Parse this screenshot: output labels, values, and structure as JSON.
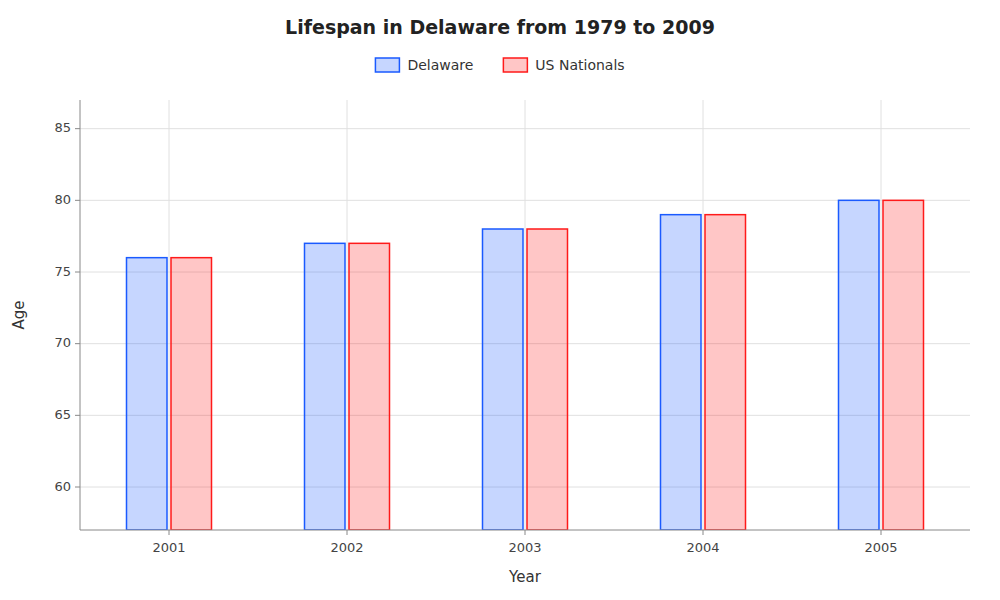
{
  "chart_data": {
    "type": "bar",
    "title": "Lifespan in Delaware from 1979 to 2009",
    "xlabel": "Year",
    "ylabel": "Age",
    "categories": [
      "2001",
      "2002",
      "2003",
      "2004",
      "2005"
    ],
    "series": [
      {
        "name": "Delaware",
        "color": "#1a5aff",
        "values": [
          76,
          77,
          78,
          79,
          80
        ]
      },
      {
        "name": "US Nationals",
        "color": "#ff1a1a",
        "values": [
          76,
          77,
          78,
          79,
          80
        ]
      }
    ],
    "ylim": [
      57,
      87
    ],
    "yticks": [
      60,
      65,
      70,
      75,
      80,
      85
    ],
    "grid": true,
    "legend": "top"
  }
}
